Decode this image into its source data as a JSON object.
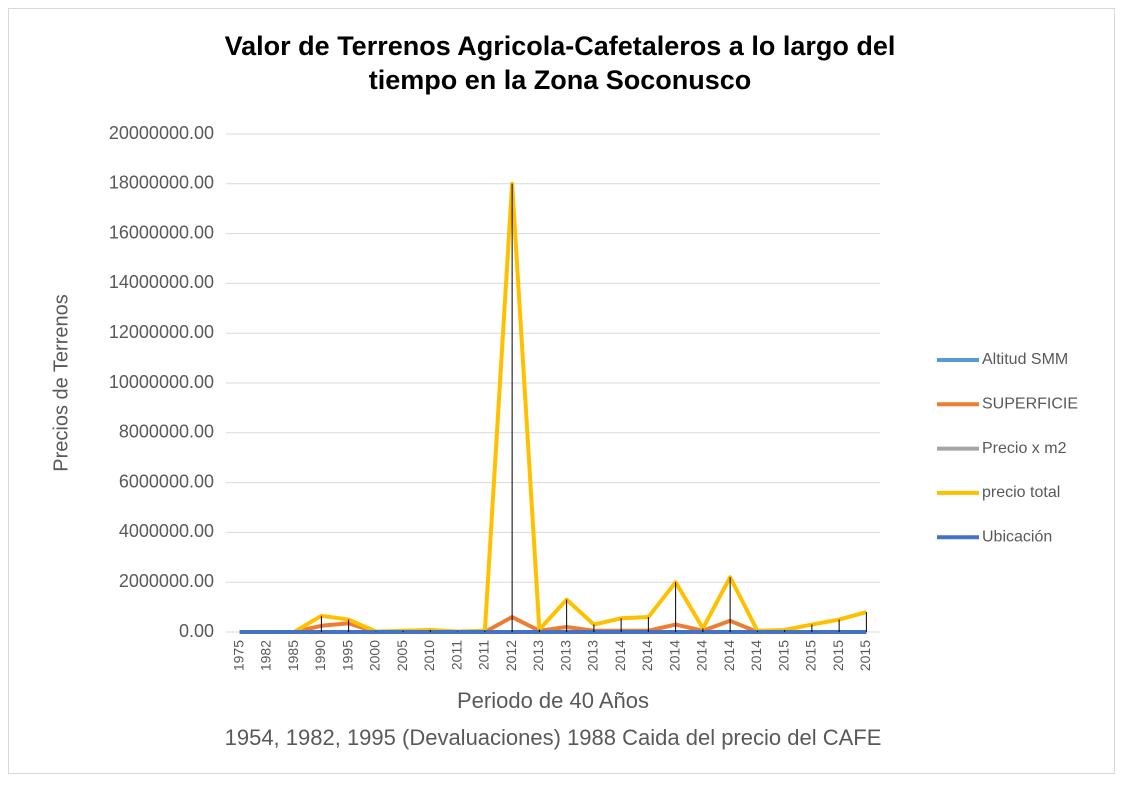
{
  "chart_data": {
    "type": "line",
    "title": [
      "Valor de Terrenos Agricola-Cafetaleros a lo largo del",
      "tiempo en la Zona Soconusco"
    ],
    "y_label": "Precios de Terrenos",
    "x_label": "Periodo de 40  Años",
    "annotation": "1954, 1982, 1995 (Devaluaciones) 1988 Caida del precio del CAFE",
    "categories": [
      "1975",
      "1982",
      "1985",
      "1990",
      "1995",
      "2000",
      "2005",
      "2010",
      "2011",
      "2011",
      "2012",
      "2013",
      "2013",
      "2013",
      "2014",
      "2014",
      "2014",
      "2014",
      "2014",
      "2014",
      "2015",
      "2015",
      "2015",
      "2015"
    ],
    "series": [
      {
        "name": "Altitud SMM",
        "color": "#5b9bd5",
        "values": [
          0,
          0,
          0,
          0,
          0,
          0,
          0,
          0,
          0,
          0,
          0,
          0,
          0,
          0,
          0,
          0,
          0,
          0,
          0,
          0,
          0,
          0,
          0,
          0
        ]
      },
      {
        "name": "SUPERFICIE",
        "color": "#ed7d31",
        "values": [
          0,
          0,
          0,
          250000,
          350000,
          0,
          0,
          0,
          0,
          0,
          600000,
          50000,
          200000,
          50000,
          50000,
          50000,
          300000,
          50000,
          450000,
          0,
          0,
          0,
          0,
          0
        ]
      },
      {
        "name": "Precio  x m2",
        "color": "#a5a5a5",
        "values": [
          0,
          0,
          0,
          0,
          0,
          0,
          0,
          0,
          0,
          0,
          0,
          0,
          0,
          0,
          0,
          0,
          0,
          0,
          0,
          0,
          0,
          0,
          0,
          0
        ]
      },
      {
        "name": "precio total",
        "color": "#ffc000",
        "values": [
          0,
          0,
          0,
          650000,
          500000,
          20000,
          50000,
          80000,
          20000,
          50000,
          18000000,
          100000,
          1300000,
          300000,
          550000,
          600000,
          2000000,
          150000,
          2200000,
          50000,
          80000,
          300000,
          500000,
          800000
        ]
      },
      {
        "name": "Ubicación",
        "color": "#4472c4",
        "values": [
          0,
          0,
          0,
          0,
          0,
          0,
          0,
          0,
          0,
          0,
          0,
          0,
          0,
          0,
          0,
          0,
          0,
          0,
          0,
          0,
          0,
          0,
          0,
          0
        ]
      }
    ],
    "ylim": [
      0,
      20000000
    ],
    "yticks": [
      {
        "value": 0,
        "label": "0.00"
      },
      {
        "value": 2000000,
        "label": "2000000.00"
      },
      {
        "value": 4000000,
        "label": "4000000.00"
      },
      {
        "value": 6000000,
        "label": "6000000.00"
      },
      {
        "value": 8000000,
        "label": "8000000.00"
      },
      {
        "value": 10000000,
        "label": "10000000.00"
      },
      {
        "value": 12000000,
        "label": "12000000.00"
      },
      {
        "value": 14000000,
        "label": "14000000.00"
      },
      {
        "value": 16000000,
        "label": "16000000.00"
      },
      {
        "value": 18000000,
        "label": "18000000.00"
      },
      {
        "value": 20000000,
        "label": "20000000.00"
      }
    ],
    "grid": true,
    "legend": "right",
    "high_low_lines": true
  }
}
